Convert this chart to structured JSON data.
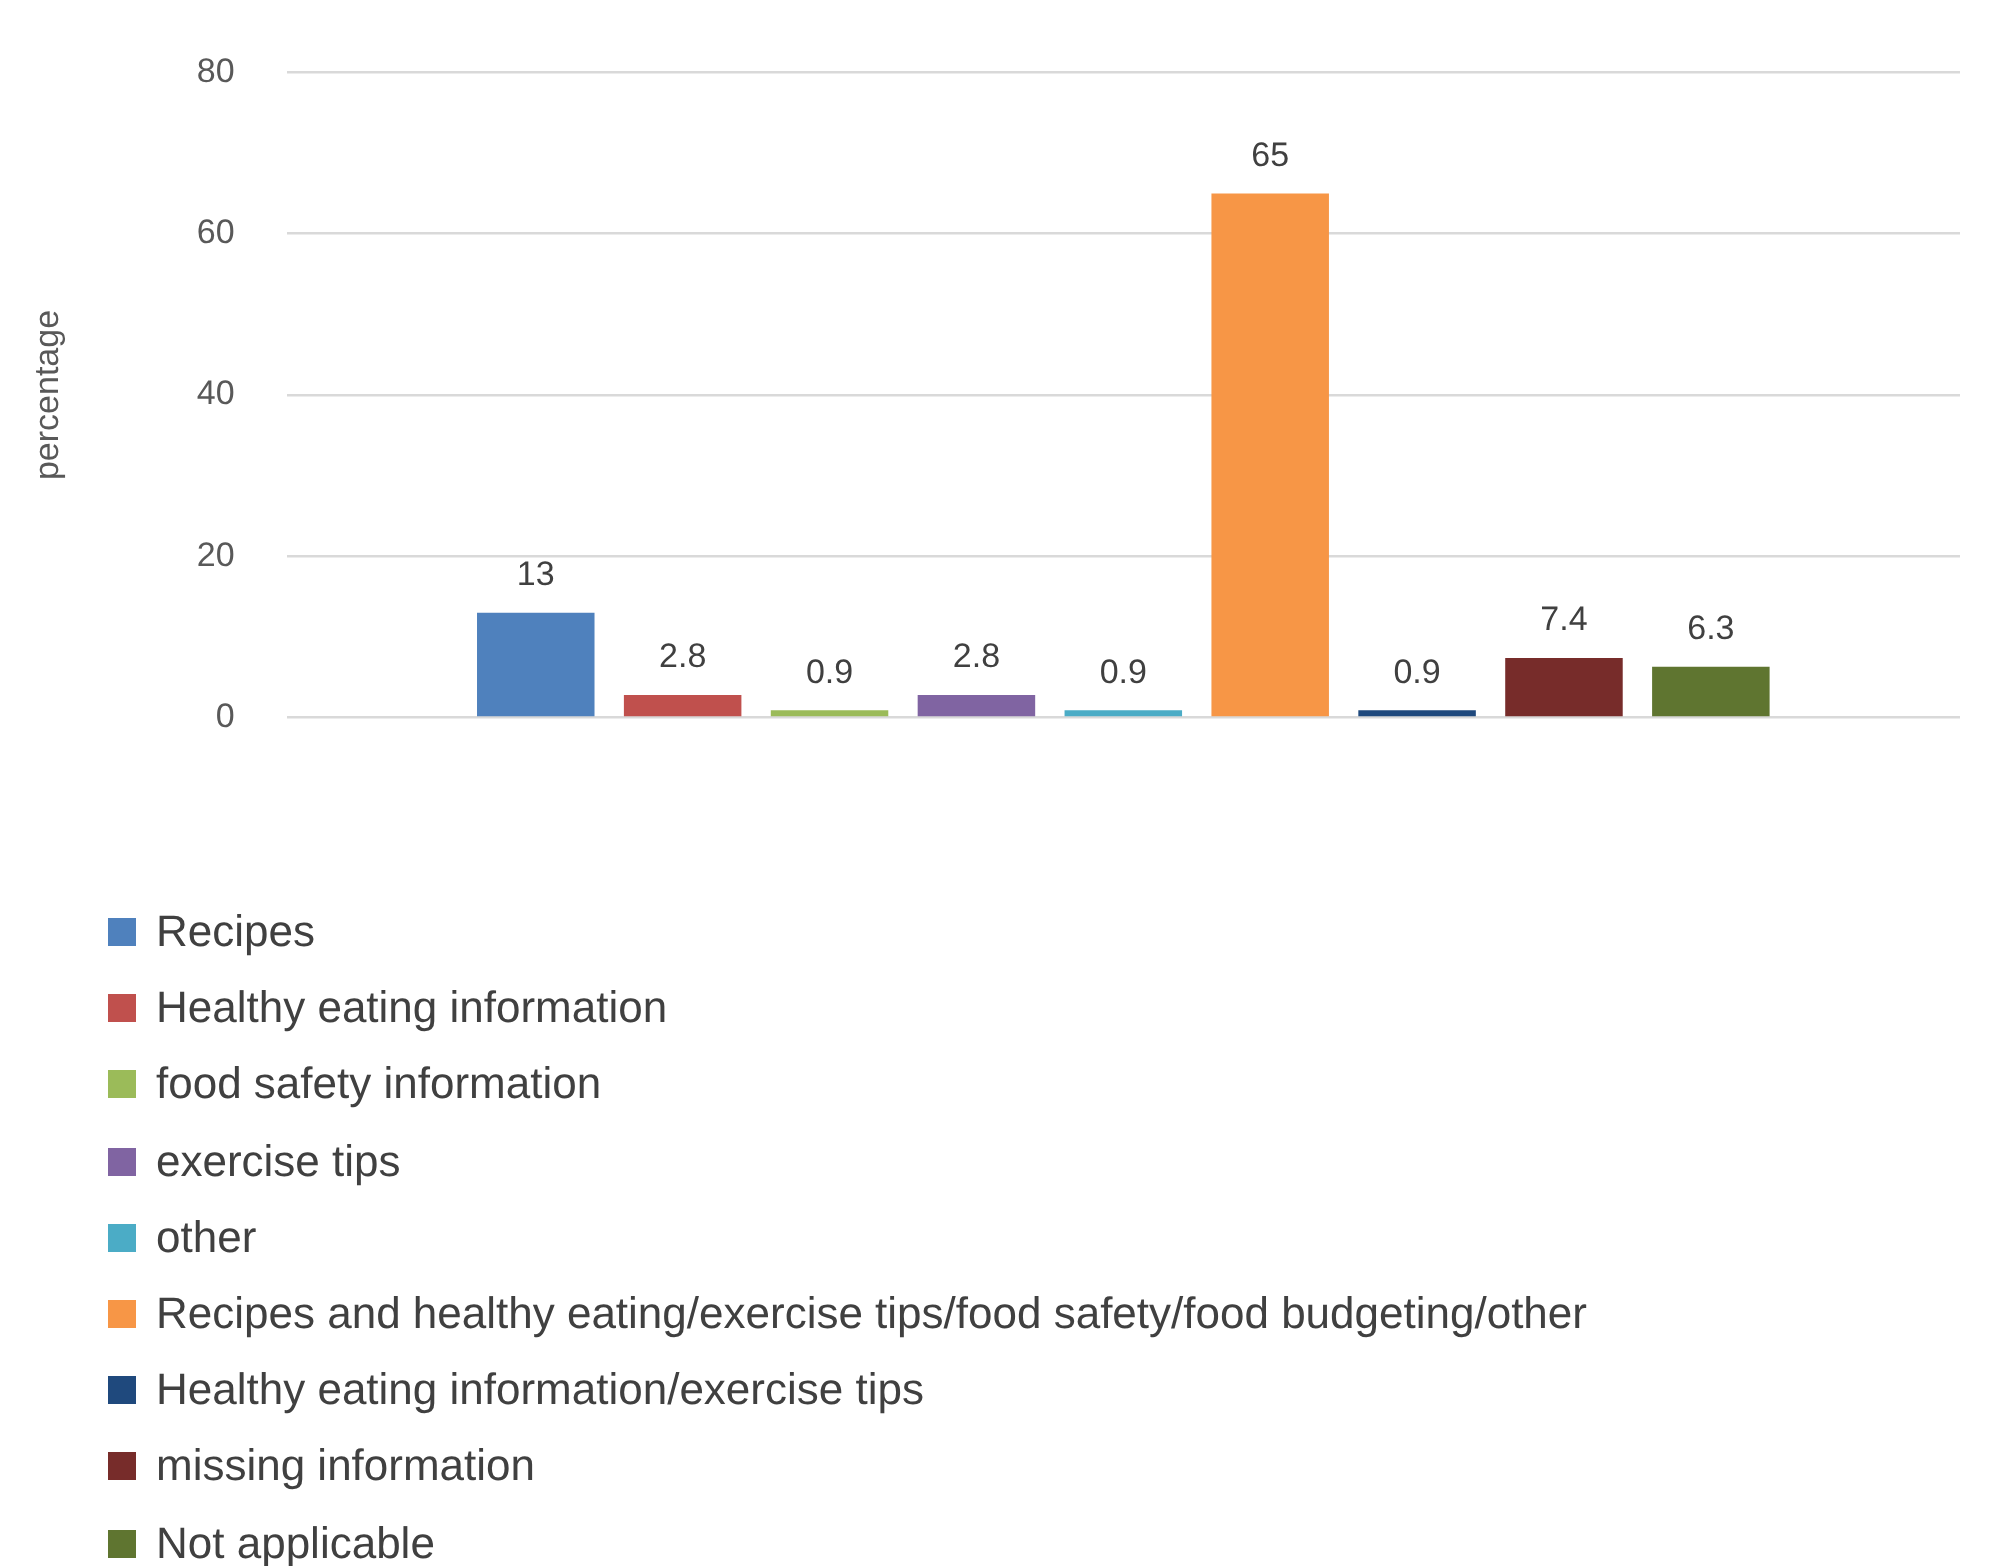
{
  "chart_data": {
    "type": "bar",
    "ylabel": "percentage",
    "categories": [
      null
    ],
    "series": [
      {
        "name": "Recipes",
        "color": "#4f81bd",
        "values": [
          13
        ]
      },
      {
        "name": "Healthy eating information",
        "color": "#c0504d",
        "values": [
          2.8
        ]
      },
      {
        "name": "food safety information",
        "color": "#9bbb59",
        "values": [
          0.9
        ]
      },
      {
        "name": "exercise tips",
        "color": "#8064a2",
        "values": [
          2.8
        ]
      },
      {
        "name": "other",
        "color": "#4bacc6",
        "values": [
          0.9
        ]
      },
      {
        "name": "Recipes and healthy eating/exercise tips/food safety/food budgeting/other",
        "color": "#f79646",
        "values": [
          65
        ]
      },
      {
        "name": "Healthy eating information/exercise tips",
        "color": "#1f497d",
        "values": [
          0.9
        ]
      },
      {
        "name": "missing information",
        "color": "#772c2a",
        "values": [
          7.4
        ]
      },
      {
        "name": "Not applicable",
        "color": "#5f7530",
        "values": [
          6.3
        ]
      }
    ],
    "ylim": [
      0,
      80
    ],
    "yticks": [
      0,
      20,
      40,
      60,
      80
    ],
    "grid": "y",
    "legend": "bottom",
    "data_labels": true
  }
}
